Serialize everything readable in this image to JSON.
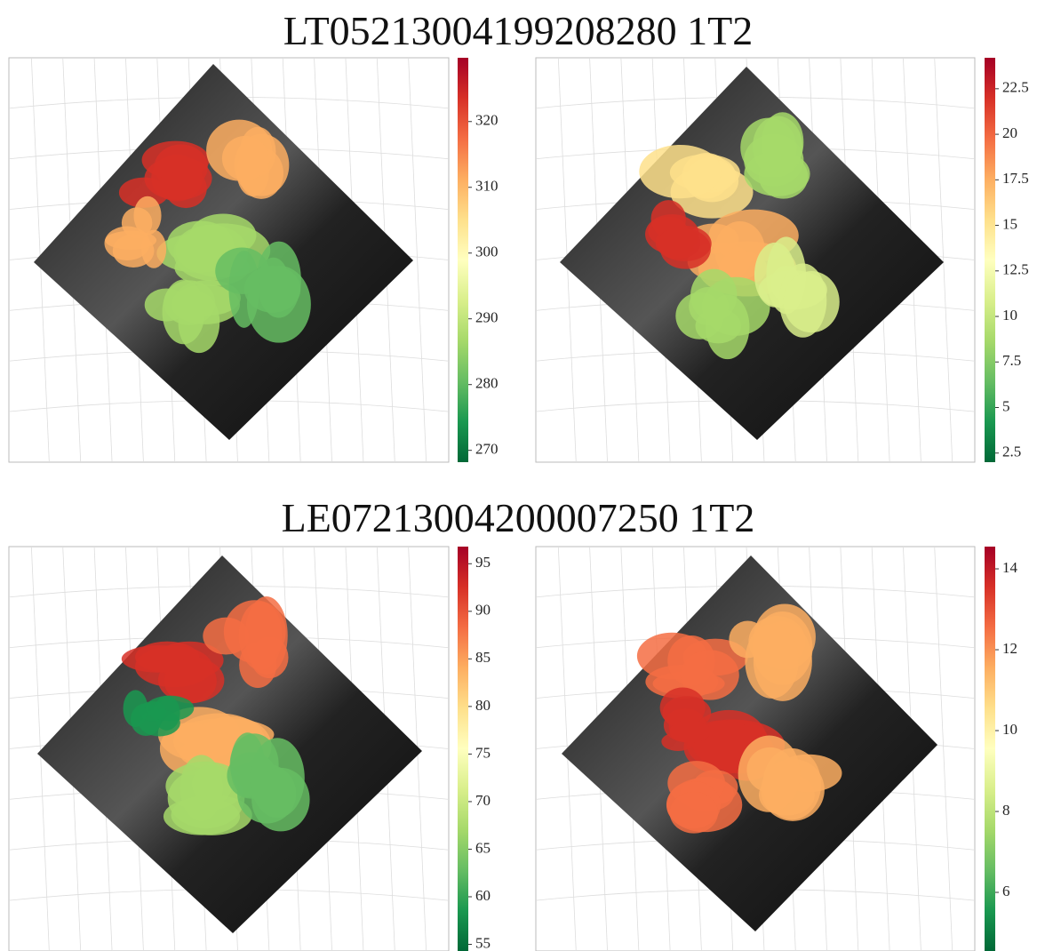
{
  "rows": [
    {
      "title": "LT05213004199208280 1T2",
      "panels": [
        {
          "lim": [
            268.2,
            329.7
          ],
          "ticks": [
            270,
            280,
            290,
            300,
            310,
            320
          ]
        },
        {
          "lim": [
            2,
            24.2
          ],
          "ticks": [
            2.5,
            5,
            7.5,
            10,
            12.5,
            15,
            17.5,
            20,
            22.5
          ]
        }
      ]
    },
    {
      "title": "LE07213004200007250 1T2",
      "panels": [
        {
          "lim": [
            54.3,
            96.8
          ],
          "ticks": [
            55,
            60,
            65,
            70,
            75,
            80,
            85,
            90,
            95
          ]
        },
        {
          "lim": [
            4.55,
            14.55
          ],
          "ticks": [
            6,
            8,
            10,
            12,
            14
          ]
        }
      ]
    }
  ]
}
